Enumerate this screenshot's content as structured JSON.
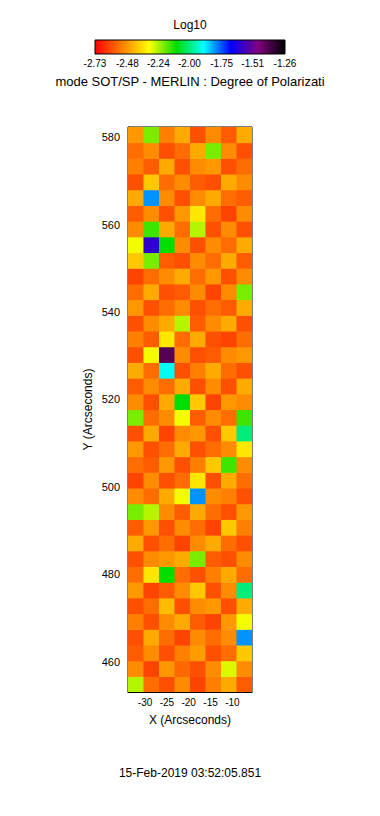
{
  "chart_data": {
    "type": "heatmap",
    "title": "mode SOT/SP - MERLIN : Degree of Polarizati",
    "x_label": "X (Arcseconds)",
    "y_label": "Y (Arcseconds)",
    "date": "15-Feb-2019 03:52:05.851",
    "xlim": [
      -33.9,
      -5.5
    ],
    "ylim": [
      453.1,
      582.3
    ],
    "xticks": [
      -30,
      -25,
      -20,
      -15,
      -10
    ],
    "yticks": [
      460,
      480,
      500,
      520,
      540,
      560,
      580
    ],
    "x": [
      -32.13,
      -28.58,
      -25.03,
      -21.48,
      -17.93,
      -14.38,
      -10.83,
      -7.28
    ],
    "y": [
      454.89,
      458.48,
      462.07,
      465.66,
      469.25,
      472.84,
      476.43,
      480.02,
      483.61,
      487.2,
      490.79,
      494.38,
      497.97,
      501.56,
      505.15,
      508.74,
      512.33,
      515.92,
      519.51,
      523.1,
      526.69,
      530.28,
      533.87,
      537.46,
      541.05,
      544.64,
      548.23,
      551.82,
      555.41,
      559.0,
      562.59,
      566.18,
      569.77,
      573.36,
      576.95,
      580.54
    ],
    "cells": [
      [
        -2.25,
        -2.55,
        -2.6,
        -2.5,
        -2.62,
        -2.52,
        -2.45,
        -2.58
      ],
      [
        -2.5,
        -2.62,
        -2.48,
        -2.56,
        -2.6,
        -2.5,
        -2.28,
        -2.5
      ],
      [
        -2.58,
        -2.5,
        -2.6,
        -2.52,
        -2.47,
        -2.6,
        -2.55,
        -2.4
      ],
      [
        -2.6,
        -2.45,
        -2.55,
        -2.62,
        -2.5,
        -2.55,
        -2.5,
        -1.8
      ],
      [
        -2.52,
        -2.6,
        -2.5,
        -2.45,
        -2.58,
        -2.62,
        -2.48,
        -2.3
      ],
      [
        -2.6,
        -2.55,
        -2.42,
        -2.6,
        -2.5,
        -2.48,
        -2.6,
        -2.45
      ],
      [
        -2.48,
        -2.62,
        -2.58,
        -2.5,
        -2.4,
        -2.6,
        -2.5,
        -2.0
      ],
      [
        -2.55,
        -2.35,
        -2.1,
        -2.55,
        -2.6,
        -2.52,
        -2.45,
        -2.55
      ],
      [
        -2.6,
        -2.5,
        -2.48,
        -2.45,
        -2.2,
        -2.58,
        -2.6,
        -2.5
      ],
      [
        -2.45,
        -2.6,
        -2.55,
        -2.62,
        -2.5,
        -2.45,
        -2.55,
        -2.6
      ],
      [
        -2.58,
        -2.48,
        -2.6,
        -2.5,
        -2.55,
        -2.62,
        -2.4,
        -2.52
      ],
      [
        -2.2,
        -2.25,
        -2.5,
        -2.58,
        -2.45,
        -2.55,
        -2.6,
        -2.48
      ],
      [
        -2.5,
        -2.55,
        -2.45,
        -2.3,
        -1.8,
        -2.5,
        -2.52,
        -2.6
      ],
      [
        -2.62,
        -2.5,
        -2.6,
        -2.55,
        -2.35,
        -2.6,
        -2.45,
        -2.55
      ],
      [
        -2.55,
        -2.58,
        -2.48,
        -2.6,
        -2.52,
        -2.4,
        -2.15,
        -2.5
      ],
      [
        -2.48,
        -2.6,
        -2.55,
        -2.45,
        -2.6,
        -2.55,
        -2.5,
        -2.35
      ],
      [
        -2.6,
        -2.45,
        -2.62,
        -2.5,
        -2.48,
        -2.6,
        -2.4,
        -2.0
      ],
      [
        -2.2,
        -2.55,
        -2.5,
        -2.3,
        -2.58,
        -2.5,
        -2.55,
        -2.15
      ],
      [
        -2.5,
        -2.6,
        -2.45,
        -2.1,
        -2.4,
        -2.62,
        -2.48,
        -2.5
      ],
      [
        -2.58,
        -2.5,
        -2.55,
        -2.45,
        -2.6,
        -2.5,
        -2.6,
        -2.45
      ],
      [
        -2.45,
        -2.55,
        -1.9,
        -2.6,
        -2.52,
        -2.45,
        -2.55,
        -2.6
      ],
      [
        -2.6,
        -2.3,
        -1.4,
        -2.5,
        -2.6,
        -2.58,
        -2.5,
        -2.48
      ],
      [
        -2.52,
        -2.58,
        -2.35,
        -2.55,
        -2.45,
        -2.6,
        -2.62,
        -2.55
      ],
      [
        -2.6,
        -2.5,
        -2.45,
        -2.25,
        -2.58,
        -2.5,
        -2.45,
        -2.6
      ],
      [
        -2.48,
        -2.6,
        -2.55,
        -2.5,
        -2.6,
        -2.55,
        -2.58,
        -2.45
      ],
      [
        -2.55,
        -2.45,
        -2.6,
        -2.58,
        -2.5,
        -2.62,
        -2.5,
        -2.2
      ],
      [
        -2.62,
        -2.55,
        -2.5,
        -2.45,
        -2.55,
        -2.48,
        -2.6,
        -2.5
      ],
      [
        -2.4,
        -2.2,
        -2.58,
        -2.6,
        -2.5,
        -2.55,
        -2.45,
        -2.58
      ],
      [
        -2.3,
        -1.6,
        -2.1,
        -2.5,
        -2.6,
        -2.5,
        -2.55,
        -2.45
      ],
      [
        -2.5,
        -2.15,
        -2.45,
        -2.55,
        -2.25,
        -2.6,
        -2.5,
        -2.6
      ],
      [
        -2.58,
        -2.5,
        -2.6,
        -2.48,
        -2.35,
        -2.55,
        -2.62,
        -2.5
      ],
      [
        -2.45,
        -1.8,
        -2.5,
        -2.6,
        -2.5,
        -2.45,
        -2.55,
        -2.58
      ],
      [
        -2.6,
        -2.4,
        -2.55,
        -2.5,
        -2.58,
        -2.6,
        -2.45,
        -2.5
      ],
      [
        -2.52,
        -2.58,
        -2.45,
        -2.6,
        -2.5,
        -2.48,
        -2.6,
        -2.55
      ],
      [
        -2.55,
        -2.5,
        -2.6,
        -2.55,
        -2.45,
        -2.2,
        -2.5,
        -2.6
      ],
      [
        -2.48,
        -2.2,
        -2.52,
        -2.45,
        -2.6,
        -2.5,
        -2.58,
        -2.45
      ]
    ],
    "colorbar_title": "Log10",
    "colorbar_range": [
      -2.73,
      -1.26
    ],
    "colorbar_ticks": [
      -2.73,
      -2.48,
      -2.24,
      {
        "value": -2,
        "label": "-2.00"
      },
      -1.75,
      -1.51,
      -1.26
    ]
  }
}
